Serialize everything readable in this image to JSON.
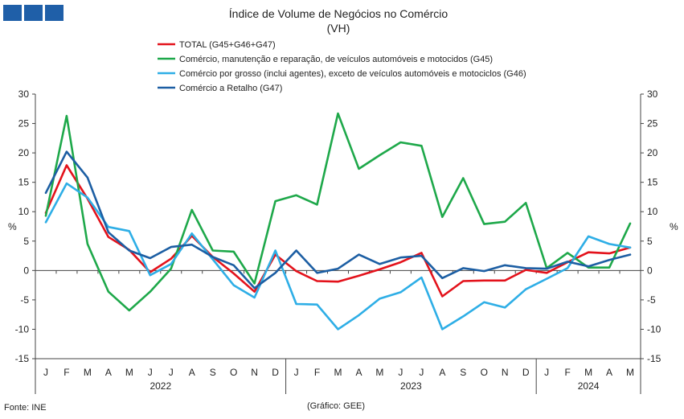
{
  "chart_data": {
    "type": "line",
    "title": "Índice de Volume de Negócios no Comércio",
    "subtitle": "(VH)",
    "ylabel_left": "%",
    "ylabel_right": "%",
    "ylim": [
      -15,
      30
    ],
    "yticks": [
      -15,
      -10,
      -5,
      0,
      5,
      10,
      15,
      20,
      25,
      30
    ],
    "grid": false,
    "legend_position": "top-center",
    "months": [
      "J",
      "F",
      "M",
      "A",
      "M",
      "J",
      "J",
      "A",
      "S",
      "O",
      "N",
      "D",
      "J",
      "F",
      "M",
      "A",
      "M",
      "J",
      "J",
      "A",
      "S",
      "O",
      "N",
      "D",
      "J",
      "F",
      "M",
      "A",
      "M"
    ],
    "years": [
      {
        "label": "2022",
        "start": 0,
        "end": 11
      },
      {
        "label": "2023",
        "start": 12,
        "end": 23
      },
      {
        "label": "2024",
        "start": 24,
        "end": 28
      }
    ],
    "series": [
      {
        "name": "TOTAL (G45+G46+G47)",
        "color": "#e3121b",
        "values": [
          9.8,
          17.9,
          12.2,
          5.7,
          3.5,
          -0.3,
          2.0,
          5.9,
          2.3,
          -0.5,
          -3.6,
          2.7,
          -0.1,
          -1.8,
          -1.9,
          -0.9,
          0.2,
          1.4,
          3.0,
          -4.4,
          -1.8,
          -1.7,
          -1.7,
          0.1,
          -0.4,
          1.4,
          3.1,
          2.9,
          3.9
        ]
      },
      {
        "name": "Comércio, manutenção e reparação, de veículos automóveis e motocidos (G45)",
        "color": "#1ea84a",
        "values": [
          9.3,
          26.3,
          4.5,
          -3.6,
          -6.8,
          -3.6,
          0.3,
          10.3,
          3.4,
          3.2,
          -2.2,
          11.8,
          12.8,
          11.2,
          26.7,
          17.3,
          19.6,
          21.8,
          21.2,
          9.1,
          15.7,
          7.9,
          8.3,
          11.5,
          0.4,
          3.0,
          0.5,
          0.5,
          8.0
        ]
      },
      {
        "name": "Comércio por grosso (inclui agentes), exceto de veículos automóveis e motociclos (G46)",
        "color": "#2eaee6",
        "values": [
          8.2,
          14.8,
          12.4,
          7.4,
          6.7,
          -0.8,
          1.1,
          6.3,
          1.9,
          -2.5,
          -4.6,
          3.4,
          -5.7,
          -5.8,
          -10.0,
          -7.6,
          -4.8,
          -3.7,
          -1.2,
          -10.0,
          -7.8,
          -5.4,
          -6.3,
          -3.2,
          -1.4,
          0.4,
          5.8,
          4.5,
          3.9
        ]
      },
      {
        "name": "Comércio a Retalho (G47)",
        "color": "#1c5ea3",
        "values": [
          13.2,
          20.2,
          15.8,
          6.5,
          3.4,
          2.1,
          4.0,
          4.4,
          2.3,
          0.9,
          -3.0,
          -0.4,
          3.4,
          -0.4,
          0.3,
          2.7,
          1.1,
          2.2,
          2.5,
          -1.3,
          0.4,
          -0.1,
          0.9,
          0.4,
          0.3,
          1.5,
          0.7,
          1.8,
          2.7
        ]
      }
    ]
  },
  "footer": {
    "source": "Fonte: INE",
    "credit": "(Gráfico: GEE)"
  }
}
